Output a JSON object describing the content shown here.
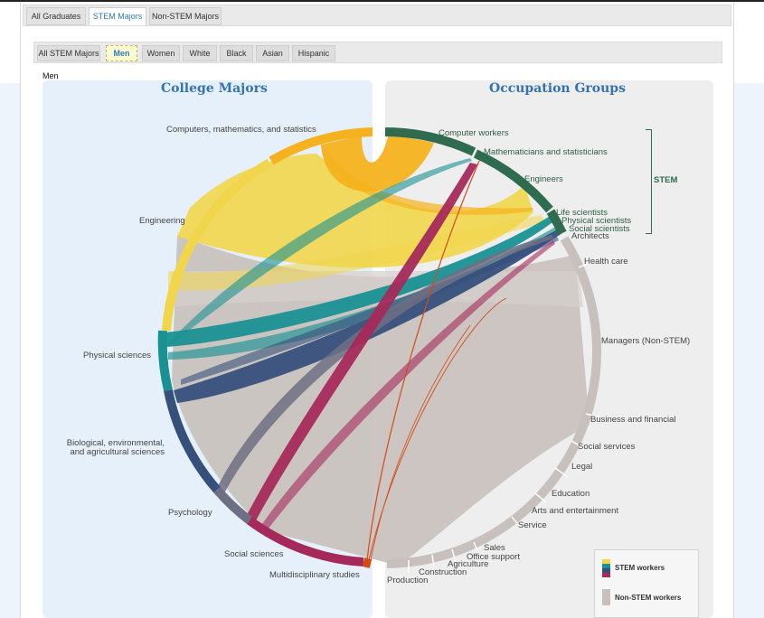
{
  "tabs": [
    "All Graduates",
    "STEM Majors",
    "Non-STEM Majors"
  ],
  "active_tab": "STEM Majors",
  "filters": [
    "All STEM Majors",
    "Men",
    "Women",
    "White",
    "Black",
    "Asian",
    "Hispanic"
  ],
  "active_filter": "Men",
  "selection_label": "Men",
  "headings": {
    "left": "College Majors",
    "right": "Occupation Groups"
  },
  "majors": [
    {
      "label": "Computers, mathematics, and statistics",
      "color": "#f5b21e"
    },
    {
      "label": "Engineering",
      "color": "#f1d64b"
    },
    {
      "label": "Physical sciences",
      "color": "#1a9193"
    },
    {
      "label": "Biological, environmental, and agricultural sciences",
      "color": "#36507c"
    },
    {
      "label": "Psychology",
      "color": "#6e6f84"
    },
    {
      "label": "Social sciences",
      "color": "#a52a5b"
    },
    {
      "label": "Multidisciplinary studies",
      "color": "#d24a16"
    }
  ],
  "occupations_stem": [
    "Computer workers",
    "Mathematicians and statisticians",
    "Engineers",
    "Life scientists",
    "Physical scientists",
    "Social scientists"
  ],
  "occupations_other": [
    "Architects",
    "Health care",
    "Managers (Non-STEM)",
    "Business and financial",
    "Social services",
    "Legal",
    "Education",
    "Arts and entertainment",
    "Service",
    "Sales",
    "Office support",
    "Agriculture",
    "Construction",
    "Production"
  ],
  "stem_bracket_label": "STEM",
  "legend": {
    "stem_label": "STEM workers",
    "nonstem_label": "Non-STEM workers",
    "stem_colors": [
      "#f1d64b",
      "#1a9193",
      "#36507c",
      "#a52a5b"
    ],
    "nonstem_color": "#c7c0bc"
  },
  "colors": {
    "stem_occupation": "#2e6b4f",
    "nonstem_occupation": "#c7c0bc",
    "heading": "#3473b3"
  }
}
